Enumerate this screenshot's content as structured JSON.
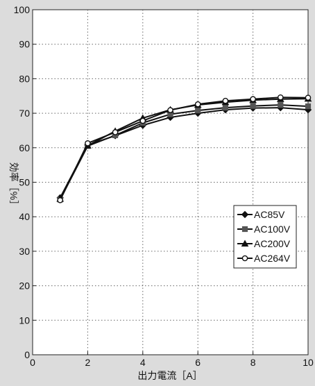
{
  "chart_data": {
    "type": "line",
    "title": "",
    "xlabel": "出力電流［A］",
    "ylabel": "効率［%］",
    "xlim": [
      0,
      10
    ],
    "ylim": [
      0,
      100
    ],
    "x_ticks": [
      0,
      2,
      4,
      6,
      8,
      10
    ],
    "y_ticks": [
      0,
      10,
      20,
      30,
      40,
      50,
      60,
      70,
      80,
      90,
      100
    ],
    "grid": "dotted",
    "legend_position": "right-middle",
    "series": [
      {
        "name": "AC85V",
        "marker": "diamond-filled",
        "color": "#111111",
        "x": [
          1,
          2,
          3,
          4,
          5,
          6,
          7,
          8,
          9,
          10
        ],
        "y": [
          45.5,
          60.8,
          63.5,
          66.5,
          68.8,
          70.0,
          71.0,
          71.5,
          71.6,
          71.0
        ]
      },
      {
        "name": "AC100V",
        "marker": "square-filled",
        "color": "#111111",
        "x": [
          1,
          2,
          3,
          4,
          5,
          6,
          7,
          8,
          9,
          10
        ],
        "y": [
          45.0,
          60.5,
          63.6,
          67.2,
          69.7,
          70.8,
          71.6,
          72.1,
          72.4,
          72.0
        ]
      },
      {
        "name": "AC200V",
        "marker": "triangle-filled",
        "color": "#111111",
        "x": [
          1,
          2,
          3,
          4,
          5,
          6,
          7,
          8,
          9,
          10
        ],
        "y": [
          45.2,
          60.6,
          64.8,
          68.6,
          71.0,
          72.4,
          73.2,
          73.8,
          74.1,
          74.2
        ]
      },
      {
        "name": "AC264V",
        "marker": "circle-open",
        "color": "#111111",
        "x": [
          1,
          2,
          3,
          4,
          5,
          6,
          7,
          8,
          9,
          10
        ],
        "y": [
          44.8,
          61.3,
          64.5,
          67.8,
          70.9,
          72.6,
          73.6,
          74.1,
          74.6,
          74.5
        ]
      }
    ]
  }
}
